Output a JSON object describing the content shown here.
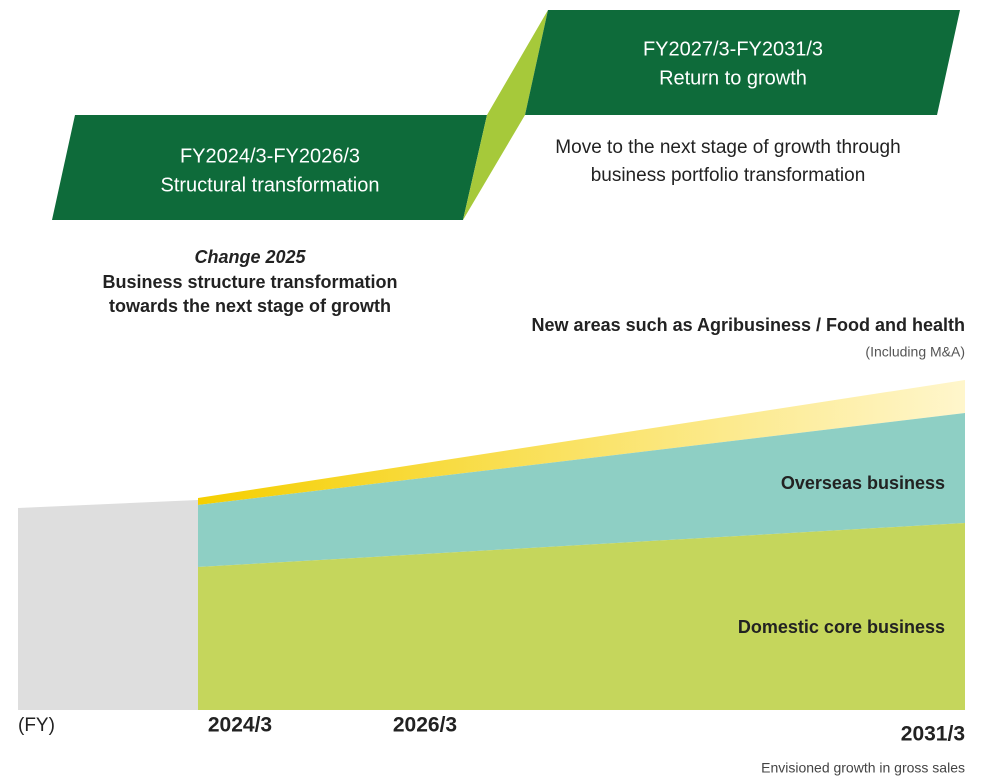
{
  "phases": [
    {
      "period": "FY2024/3-FY2026/3",
      "title": "Structural transformation"
    },
    {
      "period": "FY2027/3-FY2031/3",
      "title": "Return to growth",
      "description": [
        "Move to the next stage of growth through",
        "business portfolio transformation"
      ]
    }
  ],
  "change": {
    "title": "Change 2025",
    "lines": [
      "Business structure transformation",
      "towards the next stage of growth"
    ]
  },
  "areas": {
    "new": "New areas such as Agribusiness / Food and health",
    "new_note": "(Including M&A)",
    "overseas": "Overseas business",
    "domestic": "Domestic core business"
  },
  "axis": {
    "unit": "(FY)",
    "labels": [
      "2024/3",
      "2026/3",
      "2031/3"
    ],
    "caption": "Envisioned growth in gross sales"
  }
}
